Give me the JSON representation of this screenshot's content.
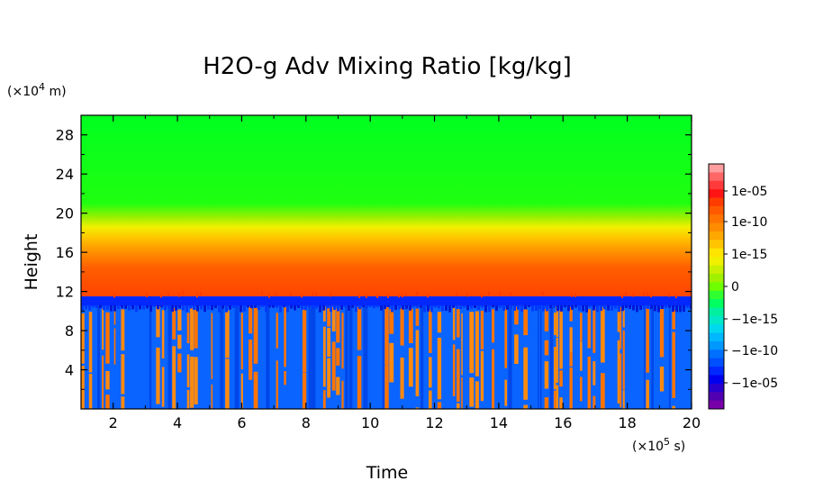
{
  "chart_data": {
    "type": "heatmap",
    "title": "H2O-g Adv Mixing Ratio [kg/kg]",
    "xlabel": "Time",
    "ylabel": "Height",
    "x_unit_prefix": "(×10",
    "x_unit_exp": "5",
    "x_unit_suffix": " s)",
    "y_unit_prefix": "(×10",
    "y_unit_exp": "4",
    "y_unit_suffix": " m)",
    "xlim": [
      1,
      20
    ],
    "ylim": [
      0,
      30
    ],
    "x_ticks": [
      2,
      4,
      6,
      8,
      10,
      12,
      14,
      16,
      18,
      20
    ],
    "y_ticks": [
      4,
      8,
      12,
      16,
      20,
      24,
      28
    ],
    "x_tick_labels": [
      "2",
      "4",
      "6",
      "8",
      "10",
      "12",
      "14",
      "16",
      "18",
      "20"
    ],
    "y_tick_labels": [
      "4",
      "8",
      "12",
      "16",
      "20",
      "24",
      "28"
    ],
    "colorbar": {
      "tick_labels": [
        "1e-05",
        "1e-10",
        "1e-15",
        "0",
        "−1e-15",
        "−1e-10",
        "−1e-05"
      ],
      "colors_top_to_bottom": [
        "#ff9e9e",
        "#ff6666",
        "#ff3a3a",
        "#ff1414",
        "#ff3c00",
        "#ff5a00",
        "#ff7400",
        "#ff8c00",
        "#ffa800",
        "#ffc600",
        "#ffe400",
        "#f0f000",
        "#c8f000",
        "#a0f000",
        "#70ff00",
        "#30ff30",
        "#00ff60",
        "#00f0a0",
        "#00e8c8",
        "#00d8f0",
        "#00b8ff",
        "#0098ff",
        "#0070ff",
        "#0050ff",
        "#0028ff",
        "#0000f0",
        "#2800d0",
        "#5000b0",
        "#7800a8"
      ]
    },
    "bands_by_height": [
      {
        "from": 19.5,
        "to": 30,
        "value": "positive tiny",
        "color": "#00ff20"
      },
      {
        "from": 17.5,
        "to": 19.5,
        "value": "~1e-15",
        "color": "#f0f000"
      },
      {
        "from": 15.5,
        "to": 17.5,
        "value": "~1e-12",
        "color": "#ffa800"
      },
      {
        "from": 11.5,
        "to": 15.5,
        "value": "~1e-08",
        "color": "#ff4a00"
      },
      {
        "from": 10.5,
        "to": 11.5,
        "value": "~−1e-05",
        "color": "#0028ff"
      },
      {
        "from": 0,
        "to": 10.5,
        "value": "mixed ±1e-10",
        "colors": [
          "#ff7400",
          "#0070ff",
          "#0050ff"
        ]
      }
    ]
  }
}
